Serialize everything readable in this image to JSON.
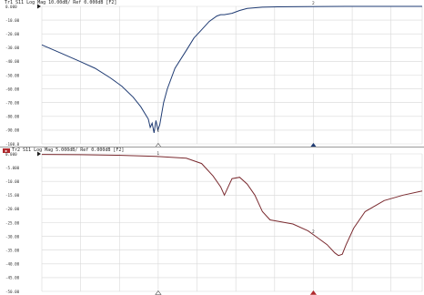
{
  "chart_data": [
    {
      "type": "line",
      "trace": "Tr1",
      "header": "Tr1 S11 Log Mag 10.00dB/ Ref 0.000dB [F2]",
      "ref_value_label": "0.000",
      "yticks": [
        "0.000",
        "-10.00",
        "-20.00",
        "-30.00",
        "-40.00",
        "-50.00",
        "-60.00",
        "-70.00",
        "-80.00",
        "-90.00",
        "-100.0"
      ],
      "ylim": [
        -100,
        0
      ],
      "xlim": [
        0,
        1
      ],
      "grid": true,
      "trace_color": "#1f3b73",
      "marker_labels": [
        "1",
        "2"
      ],
      "series": [
        {
          "x": [
            0.0,
            0.05,
            0.1,
            0.14,
            0.18,
            0.21,
            0.24,
            0.26,
            0.28,
            0.285,
            0.29,
            0.295,
            0.3,
            0.305,
            0.31,
            0.315,
            0.32,
            0.33,
            0.35,
            0.38,
            0.4,
            0.42,
            0.44,
            0.46,
            0.47,
            0.48,
            0.5,
            0.52,
            0.54,
            0.58,
            0.62,
            0.7,
            0.8,
            0.9,
            1.0
          ],
          "y": [
            -28,
            -34,
            -40,
            -45,
            -52,
            -58,
            -66,
            -73,
            -82,
            -88,
            -85,
            -92,
            -83,
            -90,
            -86,
            -78,
            -70,
            -60,
            -45,
            -32,
            -23,
            -17,
            -11,
            -7,
            -6,
            -6,
            -5,
            -3,
            -1.5,
            -0.6,
            -0.3,
            -0.1,
            0,
            0,
            0
          ]
        }
      ]
    },
    {
      "type": "line",
      "trace": "Tr2",
      "header": "Tr2 S11 Log Mag 5.000dB/ Ref 0.000dB [F2]",
      "ref_value_label": "0.000",
      "yticks": [
        "0.000",
        "-5.000",
        "-10.00",
        "-15.00",
        "-20.00",
        "-25.00",
        "-30.00",
        "-35.00",
        "-40.00",
        "-45.00",
        "-50.00"
      ],
      "ylim": [
        -50,
        0
      ],
      "xlim": [
        0,
        1
      ],
      "grid": true,
      "trace_color": "#7a2a2f",
      "marker_labels": [
        "1",
        "2"
      ],
      "series": [
        {
          "x": [
            0.0,
            0.1,
            0.2,
            0.3,
            0.38,
            0.42,
            0.45,
            0.47,
            0.48,
            0.49,
            0.5,
            0.52,
            0.54,
            0.56,
            0.58,
            0.6,
            0.62,
            0.64,
            0.66,
            0.7,
            0.72,
            0.75,
            0.77,
            0.78,
            0.79,
            0.8,
            0.82,
            0.85,
            0.9,
            0.95,
            1.0
          ],
          "y": [
            -0.2,
            -0.3,
            -0.5,
            -0.9,
            -1.6,
            -3.5,
            -8,
            -12,
            -15,
            -12,
            -9,
            -8.5,
            -11,
            -15,
            -21,
            -24,
            -24.5,
            -25,
            -25.5,
            -28,
            -30,
            -33,
            -36,
            -37,
            -36.5,
            -33,
            -27,
            -21,
            -17,
            -15,
            -13.5
          ]
        }
      ]
    }
  ]
}
